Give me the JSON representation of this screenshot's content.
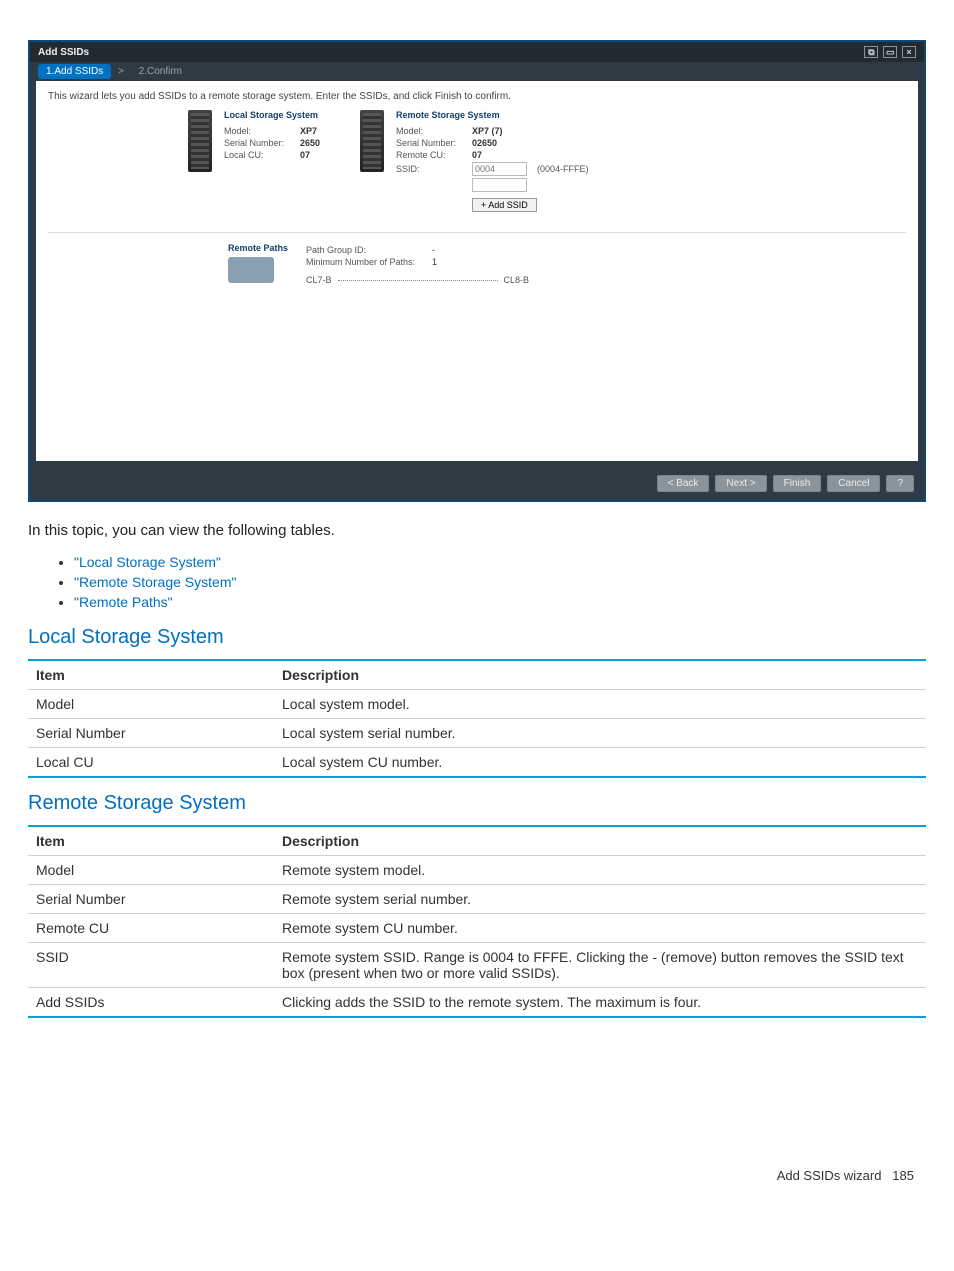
{
  "wizard": {
    "title": "Add SSIDs",
    "breadcrumb": {
      "step1": "1.Add SSIDs",
      "sep": ">",
      "step2": "2.Confirm"
    },
    "intro": "This wizard lets you add SSIDs to a remote storage system. Enter the SSIDs, and click Finish to confirm.",
    "local": {
      "header": "Local Storage System",
      "model_k": "Model:",
      "model_v": "XP7",
      "serial_k": "Serial Number:",
      "serial_v": "2650",
      "localcu_k": "Local CU:",
      "localcu_v": "07"
    },
    "remote": {
      "header": "Remote Storage System",
      "model_k": "Model:",
      "model_v": "XP7 (7)",
      "serial_k": "Serial Number:",
      "serial_v": "02650",
      "remotecu_k": "Remote CU:",
      "remotecu_v": "07",
      "ssid_k": "SSID:",
      "ssid_placeholder": "0004",
      "ssid_hint": "(0004-FFFE)",
      "addssid_btn": "+ Add SSID"
    },
    "paths": {
      "header": "Remote Paths",
      "pgid_k": "Path Group ID:",
      "pgid_v": "-",
      "min_k": "Minimum Number of Paths:",
      "min_v": "1",
      "port_local": "CL7-B",
      "port_remote": "CL8-B"
    },
    "footer": {
      "back": "< Back",
      "next": "Next >",
      "finish": "Finish",
      "cancel": "Cancel",
      "help": "?"
    }
  },
  "body_text": "In this topic, you can view the following tables.",
  "toc": {
    "a": "\"Local Storage System\"",
    "b": "\"Remote Storage System\"",
    "c": "\"Remote Paths\""
  },
  "sections": {
    "local": {
      "heading": "Local Storage System",
      "col_item": "Item",
      "col_desc": "Description",
      "rows": [
        {
          "item": "Model",
          "desc": "Local system model."
        },
        {
          "item": "Serial Number",
          "desc": "Local system serial number."
        },
        {
          "item": "Local CU",
          "desc": "Local system CU number."
        }
      ]
    },
    "remote": {
      "heading": "Remote Storage System",
      "col_item": "Item",
      "col_desc": "Description",
      "rows": [
        {
          "item": "Model",
          "desc": "Remote system model."
        },
        {
          "item": "Serial Number",
          "desc": "Remote system serial number."
        },
        {
          "item": "Remote CU",
          "desc": "Remote system CU number."
        },
        {
          "item": "SSID",
          "desc": "Remote system SSID. Range is 0004 to FFFE. Clicking the - (remove) button removes the SSID text box (present when two or more valid SSIDs)."
        },
        {
          "item": "Add SSIDs",
          "desc": "Clicking adds the SSID to the remote system. The maximum is four."
        }
      ]
    }
  },
  "page_footer": {
    "label": "Add SSIDs wizard",
    "page": "185"
  }
}
